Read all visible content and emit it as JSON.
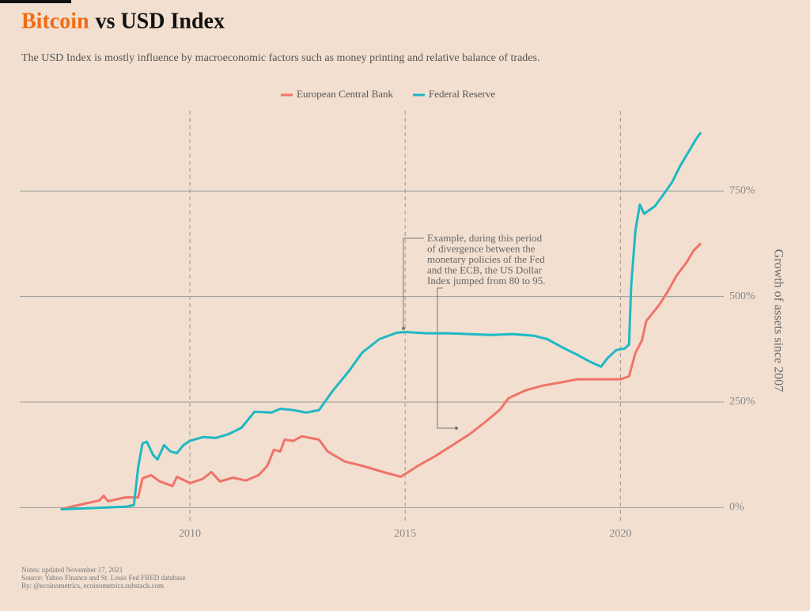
{
  "chart_data": {
    "type": "line",
    "title": {
      "highlight": "Bitcoin",
      "rest": "vs USD Index"
    },
    "subtitle": "The USD Index is mostly influence by macroeconomic factors such as money printing and relative balance of trades.",
    "y_axis_label": "Growth of assets since 2007",
    "xlim": [
      2006.05,
      2022.4
    ],
    "xticks": [
      2010,
      2015,
      2020
    ],
    "ylim": [
      -35,
      940
    ],
    "yticks": [
      {
        "value": 0,
        "label": "0%"
      },
      {
        "value": 250,
        "label": "250%"
      },
      {
        "value": 500,
        "label": "500%"
      },
      {
        "value": 750,
        "label": "750%"
      }
    ],
    "grid": true,
    "legend": "top",
    "series": [
      {
        "name": "European Central Bank",
        "color": "#f0736a",
        "x": [
          2007.0,
          2007.5,
          2007.9,
          2008.0,
          2008.1,
          2008.5,
          2008.8,
          2008.9,
          2009.1,
          2009.3,
          2009.6,
          2009.7,
          2010.0,
          2010.3,
          2010.5,
          2010.7,
          2011.0,
          2011.3,
          2011.6,
          2011.8,
          2011.95,
          2012.1,
          2012.2,
          2012.4,
          2012.6,
          2013.0,
          2013.2,
          2013.6,
          2014.0,
          2014.5,
          2014.9,
          2015.1,
          2015.3,
          2015.7,
          2016.1,
          2016.5,
          2016.9,
          2017.2,
          2017.4,
          2017.8,
          2018.2,
          2018.7,
          2019.0,
          2019.5,
          2020.0,
          2020.2,
          2020.35,
          2020.5,
          2020.6,
          2020.9,
          2021.1,
          2021.3,
          2021.55,
          2021.7,
          2021.87
        ],
        "values": [
          -4,
          8,
          17,
          28,
          15,
          24,
          24,
          69,
          77,
          62,
          51,
          73,
          58,
          68,
          84,
          62,
          71,
          64,
          77,
          99,
          137,
          133,
          161,
          158,
          169,
          161,
          133,
          109,
          99,
          84,
          73,
          86,
          99,
          122,
          148,
          174,
          206,
          232,
          259,
          278,
          289,
          298,
          304,
          304,
          304,
          311,
          367,
          396,
          442,
          480,
          512,
          549,
          583,
          609,
          626
        ]
      },
      {
        "name": "Federal Reserve",
        "color": "#1fb8c4",
        "x": [
          2007.0,
          2008.5,
          2008.7,
          2008.8,
          2008.9,
          2009.0,
          2009.15,
          2009.25,
          2009.4,
          2009.55,
          2009.7,
          2009.85,
          2010.0,
          2010.3,
          2010.6,
          2010.9,
          2011.2,
          2011.5,
          2011.9,
          2012.1,
          2012.4,
          2012.7,
          2013.0,
          2013.3,
          2013.7,
          2014.0,
          2014.4,
          2014.8,
          2015.0,
          2015.5,
          2016.0,
          2016.5,
          2017.0,
          2017.5,
          2018.0,
          2018.3,
          2018.7,
          2019.0,
          2019.3,
          2019.55,
          2019.7,
          2019.9,
          2020.1,
          2020.2,
          2020.25,
          2020.35,
          2020.45,
          2020.55,
          2020.8,
          2021.0,
          2021.2,
          2021.4,
          2021.6,
          2021.75,
          2021.87
        ],
        "values": [
          -4,
          2,
          6,
          96,
          152,
          156,
          124,
          114,
          148,
          133,
          129,
          148,
          158,
          167,
          165,
          174,
          189,
          227,
          225,
          234,
          231,
          225,
          231,
          274,
          324,
          367,
          399,
          414,
          416,
          413,
          413,
          411,
          409,
          411,
          407,
          399,
          377,
          362,
          345,
          334,
          354,
          373,
          377,
          386,
          527,
          658,
          718,
          696,
          714,
          742,
          771,
          812,
          846,
          872,
          889
        ]
      }
    ],
    "annotation": [
      "Example, during this period",
      "of divergence between the",
      "monetary policies of the Fed",
      "and the ECB, the US Dollar",
      "Index jumped from 80 to 95."
    ],
    "notes": [
      "Notes: updated November 17, 2021",
      "Source: Yahoo Finance and St. Louis Fed FRED database",
      "By: @ecoinometrics, ecoinometrics.substack.com"
    ]
  }
}
